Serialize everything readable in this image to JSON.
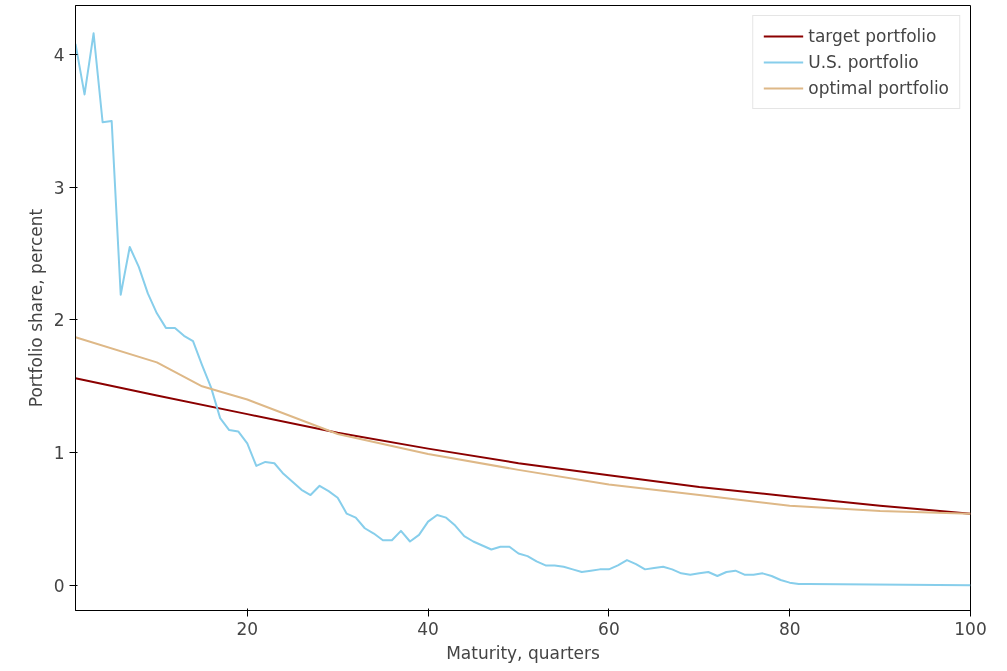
{
  "chart_data": {
    "type": "line",
    "xlabel": "Maturity, quarters",
    "ylabel": "Portfolio share, percent",
    "xlim": [
      1,
      100
    ],
    "ylim": [
      -0.19,
      4.37
    ],
    "xticks": [
      20,
      40,
      60,
      80,
      100
    ],
    "yticks": [
      0,
      1,
      2,
      3,
      4
    ],
    "grid": false,
    "legend": "top right",
    "series": [
      {
        "name": "target portfolio",
        "color": "#8b0000",
        "x": [
          1,
          10,
          20,
          30,
          40,
          50,
          60,
          70,
          80,
          90,
          100
        ],
        "values": [
          1.56,
          1.43,
          1.29,
          1.15,
          1.03,
          0.92,
          0.83,
          0.74,
          0.67,
          0.6,
          0.54
        ]
      },
      {
        "name": "U.S. portfolio",
        "color": "#87ceeb",
        "x": [
          1,
          2,
          3,
          4,
          5,
          6,
          7,
          8,
          9,
          10,
          11,
          12,
          13,
          14,
          15,
          16,
          17,
          18,
          19,
          20,
          21,
          22,
          23,
          24,
          25,
          26,
          27,
          28,
          29,
          30,
          31,
          32,
          33,
          34,
          35,
          36,
          37,
          38,
          39,
          40,
          41,
          42,
          43,
          44,
          45,
          46,
          47,
          48,
          49,
          50,
          51,
          52,
          53,
          54,
          55,
          56,
          57,
          58,
          59,
          60,
          61,
          62,
          63,
          64,
          65,
          66,
          67,
          68,
          69,
          70,
          71,
          72,
          73,
          74,
          75,
          76,
          77,
          78,
          79,
          80,
          81,
          82,
          100
        ],
        "values": [
          4.08,
          3.7,
          4.16,
          3.49,
          3.5,
          2.19,
          2.55,
          2.4,
          2.2,
          2.05,
          1.94,
          1.94,
          1.88,
          1.84,
          1.66,
          1.49,
          1.26,
          1.17,
          1.16,
          1.07,
          0.9,
          0.93,
          0.92,
          0.84,
          0.78,
          0.72,
          0.68,
          0.75,
          0.71,
          0.66,
          0.54,
          0.51,
          0.43,
          0.39,
          0.34,
          0.34,
          0.41,
          0.33,
          0.38,
          0.48,
          0.53,
          0.51,
          0.45,
          0.37,
          0.33,
          0.3,
          0.27,
          0.29,
          0.29,
          0.24,
          0.22,
          0.18,
          0.15,
          0.15,
          0.14,
          0.12,
          0.1,
          0.11,
          0.12,
          0.12,
          0.15,
          0.19,
          0.16,
          0.12,
          0.13,
          0.14,
          0.12,
          0.09,
          0.08,
          0.09,
          0.1,
          0.07,
          0.1,
          0.11,
          0.08,
          0.08,
          0.09,
          0.07,
          0.04,
          0.02,
          0.01,
          0.01,
          0.0
        ]
      },
      {
        "name": "optimal portfolio",
        "color": "#deb887",
        "x": [
          1,
          10,
          15,
          18,
          20,
          30,
          40,
          50,
          60,
          70,
          80,
          90,
          100
        ],
        "values": [
          1.87,
          1.68,
          1.5,
          1.44,
          1.4,
          1.14,
          0.99,
          0.87,
          0.76,
          0.68,
          0.6,
          0.56,
          0.54
        ]
      }
    ]
  }
}
